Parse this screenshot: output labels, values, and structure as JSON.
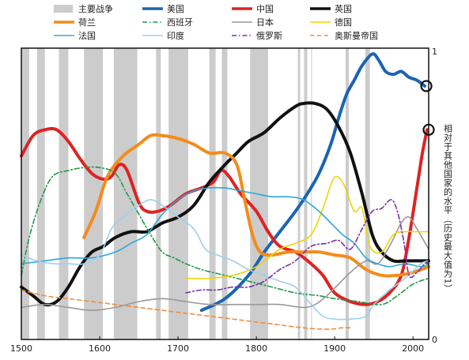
{
  "chart_data": {
    "type": "line",
    "ylabel": "相对于其他国家的水平（历史最大值为1）",
    "xlim": [
      1500,
      2020
    ],
    "ylim": [
      0,
      1
    ],
    "x_ticks": [
      1500,
      1600,
      1700,
      1800,
      1900,
      2000
    ],
    "y_ticks": [
      {
        "value": 0,
        "label": "0"
      },
      {
        "value": 1,
        "label": "1"
      }
    ],
    "grid": false,
    "legend_position": "top",
    "war_periods_label": "主要战争",
    "war_color": "#cccccc",
    "war_periods": [
      [
        1500,
        1510
      ],
      [
        1520,
        1530
      ],
      [
        1548,
        1560
      ],
      [
        1580,
        1604
      ],
      [
        1618,
        1648
      ],
      [
        1672,
        1678
      ],
      [
        1688,
        1713
      ],
      [
        1740,
        1748
      ],
      [
        1756,
        1763
      ],
      [
        1792,
        1815
      ],
      [
        1853,
        1856
      ],
      [
        1861,
        1865
      ],
      [
        1870,
        1871
      ],
      [
        1914,
        1918
      ],
      [
        1939,
        1945
      ]
    ],
    "series": [
      {
        "name": "美国",
        "color": "#1a64b4",
        "width": 4,
        "dash": "",
        "points": [
          [
            1730,
            0.1
          ],
          [
            1760,
            0.14
          ],
          [
            1790,
            0.22
          ],
          [
            1810,
            0.3
          ],
          [
            1830,
            0.37
          ],
          [
            1850,
            0.44
          ],
          [
            1865,
            0.5
          ],
          [
            1880,
            0.57
          ],
          [
            1895,
            0.67
          ],
          [
            1905,
            0.76
          ],
          [
            1915,
            0.84
          ],
          [
            1925,
            0.89
          ],
          [
            1935,
            0.94
          ],
          [
            1948,
            0.98
          ],
          [
            1956,
            0.96
          ],
          [
            1965,
            0.92
          ],
          [
            1975,
            0.91
          ],
          [
            1985,
            0.92
          ],
          [
            1995,
            0.9
          ],
          [
            2005,
            0.89
          ],
          [
            2015,
            0.87
          ]
        ],
        "marker": "ring"
      },
      {
        "name": "中国",
        "color": "#e02222",
        "width": 4,
        "dash": "",
        "points": [
          [
            1500,
            0.63
          ],
          [
            1515,
            0.7
          ],
          [
            1530,
            0.72
          ],
          [
            1545,
            0.72
          ],
          [
            1560,
            0.68
          ],
          [
            1575,
            0.62
          ],
          [
            1590,
            0.57
          ],
          [
            1605,
            0.55
          ],
          [
            1615,
            0.56
          ],
          [
            1625,
            0.6
          ],
          [
            1635,
            0.58
          ],
          [
            1650,
            0.47
          ],
          [
            1660,
            0.44
          ],
          [
            1675,
            0.44
          ],
          [
            1690,
            0.46
          ],
          [
            1710,
            0.5
          ],
          [
            1730,
            0.52
          ],
          [
            1745,
            0.54
          ],
          [
            1755,
            0.58
          ],
          [
            1765,
            0.56
          ],
          [
            1780,
            0.5
          ],
          [
            1800,
            0.44
          ],
          [
            1815,
            0.37
          ],
          [
            1830,
            0.32
          ],
          [
            1850,
            0.3
          ],
          [
            1870,
            0.26
          ],
          [
            1885,
            0.22
          ],
          [
            1900,
            0.16
          ],
          [
            1920,
            0.13
          ],
          [
            1940,
            0.12
          ],
          [
            1955,
            0.13
          ],
          [
            1970,
            0.16
          ],
          [
            1985,
            0.22
          ],
          [
            1995,
            0.35
          ],
          [
            2005,
            0.52
          ],
          [
            2012,
            0.64
          ],
          [
            2018,
            0.72
          ]
        ],
        "marker": "ring"
      },
      {
        "name": "英国",
        "color": "#111111",
        "width": 4,
        "dash": "",
        "points": [
          [
            1500,
            0.18
          ],
          [
            1515,
            0.15
          ],
          [
            1530,
            0.12
          ],
          [
            1545,
            0.13
          ],
          [
            1560,
            0.18
          ],
          [
            1575,
            0.25
          ],
          [
            1590,
            0.3
          ],
          [
            1605,
            0.32
          ],
          [
            1620,
            0.35
          ],
          [
            1640,
            0.37
          ],
          [
            1660,
            0.37
          ],
          [
            1680,
            0.4
          ],
          [
            1700,
            0.42
          ],
          [
            1720,
            0.46
          ],
          [
            1740,
            0.54
          ],
          [
            1760,
            0.6
          ],
          [
            1775,
            0.64
          ],
          [
            1790,
            0.68
          ],
          [
            1810,
            0.71
          ],
          [
            1830,
            0.76
          ],
          [
            1850,
            0.8
          ],
          [
            1860,
            0.81
          ],
          [
            1875,
            0.81
          ],
          [
            1890,
            0.79
          ],
          [
            1905,
            0.73
          ],
          [
            1920,
            0.64
          ],
          [
            1935,
            0.5
          ],
          [
            1948,
            0.36
          ],
          [
            1960,
            0.3
          ],
          [
            1975,
            0.27
          ],
          [
            1990,
            0.27
          ],
          [
            2010,
            0.27
          ],
          [
            2020,
            0.27
          ]
        ]
      },
      {
        "name": "荷兰",
        "color": "#f38c1c",
        "width": 4,
        "dash": "",
        "points": [
          [
            1580,
            0.35
          ],
          [
            1595,
            0.44
          ],
          [
            1610,
            0.56
          ],
          [
            1630,
            0.63
          ],
          [
            1650,
            0.67
          ],
          [
            1665,
            0.7
          ],
          [
            1680,
            0.7
          ],
          [
            1700,
            0.69
          ],
          [
            1720,
            0.67
          ],
          [
            1740,
            0.64
          ],
          [
            1760,
            0.64
          ],
          [
            1775,
            0.6
          ],
          [
            1785,
            0.48
          ],
          [
            1795,
            0.36
          ],
          [
            1805,
            0.3
          ],
          [
            1820,
            0.29
          ],
          [
            1840,
            0.3
          ],
          [
            1860,
            0.3
          ],
          [
            1880,
            0.3
          ],
          [
            1900,
            0.29
          ],
          [
            1920,
            0.28
          ],
          [
            1940,
            0.24
          ],
          [
            1960,
            0.22
          ],
          [
            1980,
            0.22
          ],
          [
            2000,
            0.23
          ],
          [
            2020,
            0.25
          ]
        ]
      },
      {
        "name": "西班牙",
        "color": "#1e9a4a",
        "width": 1.6,
        "dash": "6 3 1.5 3",
        "points": [
          [
            1500,
            0.22
          ],
          [
            1510,
            0.35
          ],
          [
            1525,
            0.48
          ],
          [
            1540,
            0.56
          ],
          [
            1560,
            0.58
          ],
          [
            1580,
            0.59
          ],
          [
            1600,
            0.59
          ],
          [
            1620,
            0.57
          ],
          [
            1635,
            0.5
          ],
          [
            1650,
            0.43
          ],
          [
            1665,
            0.36
          ],
          [
            1680,
            0.3
          ],
          [
            1695,
            0.28
          ],
          [
            1710,
            0.26
          ],
          [
            1730,
            0.24
          ],
          [
            1760,
            0.22
          ],
          [
            1790,
            0.2
          ],
          [
            1820,
            0.18
          ],
          [
            1850,
            0.16
          ],
          [
            1880,
            0.15
          ],
          [
            1900,
            0.14
          ],
          [
            1930,
            0.13
          ],
          [
            1960,
            0.12
          ],
          [
            1980,
            0.15
          ],
          [
            2000,
            0.19
          ],
          [
            2020,
            0.21
          ]
        ]
      },
      {
        "name": "日本",
        "color": "#999999",
        "width": 1.6,
        "dash": "",
        "points": [
          [
            1500,
            0.11
          ],
          [
            1530,
            0.12
          ],
          [
            1560,
            0.11
          ],
          [
            1590,
            0.1
          ],
          [
            1620,
            0.11
          ],
          [
            1650,
            0.13
          ],
          [
            1680,
            0.14
          ],
          [
            1710,
            0.13
          ],
          [
            1740,
            0.12
          ],
          [
            1770,
            0.12
          ],
          [
            1800,
            0.12
          ],
          [
            1830,
            0.12
          ],
          [
            1860,
            0.11
          ],
          [
            1875,
            0.12
          ],
          [
            1890,
            0.15
          ],
          [
            1905,
            0.19
          ],
          [
            1920,
            0.23
          ],
          [
            1940,
            0.27
          ],
          [
            1955,
            0.26
          ],
          [
            1970,
            0.32
          ],
          [
            1985,
            0.4
          ],
          [
            1995,
            0.42
          ],
          [
            2005,
            0.38
          ],
          [
            2020,
            0.31
          ]
        ]
      },
      {
        "name": "德国",
        "color": "#f0d400",
        "width": 1.6,
        "dash": "",
        "points": [
          [
            1710,
            0.21
          ],
          [
            1740,
            0.21
          ],
          [
            1770,
            0.22
          ],
          [
            1800,
            0.25
          ],
          [
            1830,
            0.31
          ],
          [
            1850,
            0.33
          ],
          [
            1870,
            0.36
          ],
          [
            1885,
            0.45
          ],
          [
            1895,
            0.53
          ],
          [
            1902,
            0.56
          ],
          [
            1912,
            0.53
          ],
          [
            1925,
            0.44
          ],
          [
            1935,
            0.45
          ],
          [
            1945,
            0.32
          ],
          [
            1960,
            0.3
          ],
          [
            1975,
            0.36
          ],
          [
            1990,
            0.37
          ],
          [
            2005,
            0.37
          ],
          [
            2020,
            0.37
          ]
        ]
      },
      {
        "name": "法国",
        "color": "#2ea6dc",
        "width": 1.6,
        "dash": "",
        "points": [
          [
            1500,
            0.26
          ],
          [
            1530,
            0.27
          ],
          [
            1560,
            0.28
          ],
          [
            1590,
            0.28
          ],
          [
            1620,
            0.3
          ],
          [
            1640,
            0.33
          ],
          [
            1660,
            0.36
          ],
          [
            1680,
            0.43
          ],
          [
            1700,
            0.48
          ],
          [
            1720,
            0.51
          ],
          [
            1740,
            0.52
          ],
          [
            1760,
            0.52
          ],
          [
            1780,
            0.51
          ],
          [
            1800,
            0.5
          ],
          [
            1820,
            0.49
          ],
          [
            1840,
            0.49
          ],
          [
            1860,
            0.48
          ],
          [
            1880,
            0.44
          ],
          [
            1895,
            0.4
          ],
          [
            1910,
            0.36
          ],
          [
            1925,
            0.33
          ],
          [
            1940,
            0.28
          ],
          [
            1955,
            0.26
          ],
          [
            1970,
            0.25
          ],
          [
            1990,
            0.26
          ],
          [
            2010,
            0.25
          ],
          [
            2020,
            0.26
          ]
        ]
      },
      {
        "name": "印度",
        "color": "#9fd0ec",
        "width": 1.6,
        "dash": "",
        "points": [
          [
            1500,
            0.29
          ],
          [
            1520,
            0.27
          ],
          [
            1540,
            0.26
          ],
          [
            1560,
            0.26
          ],
          [
            1580,
            0.26
          ],
          [
            1600,
            0.29
          ],
          [
            1615,
            0.38
          ],
          [
            1630,
            0.42
          ],
          [
            1650,
            0.46
          ],
          [
            1665,
            0.48
          ],
          [
            1680,
            0.46
          ],
          [
            1700,
            0.42
          ],
          [
            1720,
            0.38
          ],
          [
            1735,
            0.31
          ],
          [
            1750,
            0.29
          ],
          [
            1770,
            0.27
          ],
          [
            1790,
            0.24
          ],
          [
            1810,
            0.22
          ],
          [
            1830,
            0.2
          ],
          [
            1850,
            0.18
          ],
          [
            1870,
            0.12
          ],
          [
            1885,
            0.08
          ],
          [
            1900,
            0.07
          ],
          [
            1920,
            0.07
          ],
          [
            1940,
            0.08
          ],
          [
            1950,
            0.12
          ],
          [
            1970,
            0.17
          ],
          [
            1990,
            0.21
          ],
          [
            2010,
            0.26
          ],
          [
            2020,
            0.27
          ]
        ]
      },
      {
        "name": "俄罗斯",
        "color": "#7a2fa6",
        "width": 1.6,
        "dash": "6 3 1.5 3",
        "points": [
          [
            1710,
            0.16
          ],
          [
            1730,
            0.17
          ],
          [
            1750,
            0.17
          ],
          [
            1770,
            0.18
          ],
          [
            1790,
            0.18
          ],
          [
            1810,
            0.2
          ],
          [
            1830,
            0.24
          ],
          [
            1850,
            0.27
          ],
          [
            1870,
            0.32
          ],
          [
            1890,
            0.33
          ],
          [
            1905,
            0.34
          ],
          [
            1920,
            0.31
          ],
          [
            1935,
            0.38
          ],
          [
            1948,
            0.44
          ],
          [
            1960,
            0.45
          ],
          [
            1972,
            0.48
          ],
          [
            1980,
            0.44
          ],
          [
            1988,
            0.34
          ],
          [
            1995,
            0.22
          ],
          [
            2005,
            0.23
          ],
          [
            2015,
            0.26
          ],
          [
            2020,
            0.26
          ]
        ]
      },
      {
        "name": "奥斯曼帝国",
        "color": "#f38c3c",
        "width": 1.6,
        "dash": "5 4",
        "points": [
          [
            1500,
            0.17
          ],
          [
            1530,
            0.15
          ],
          [
            1560,
            0.14
          ],
          [
            1590,
            0.13
          ],
          [
            1620,
            0.12
          ],
          [
            1650,
            0.11
          ],
          [
            1680,
            0.1
          ],
          [
            1710,
            0.09
          ],
          [
            1740,
            0.08
          ],
          [
            1770,
            0.07
          ],
          [
            1800,
            0.06
          ],
          [
            1830,
            0.05
          ],
          [
            1860,
            0.04
          ],
          [
            1890,
            0.035
          ],
          [
            1910,
            0.04
          ],
          [
            1922,
            0.04
          ]
        ]
      }
    ]
  }
}
